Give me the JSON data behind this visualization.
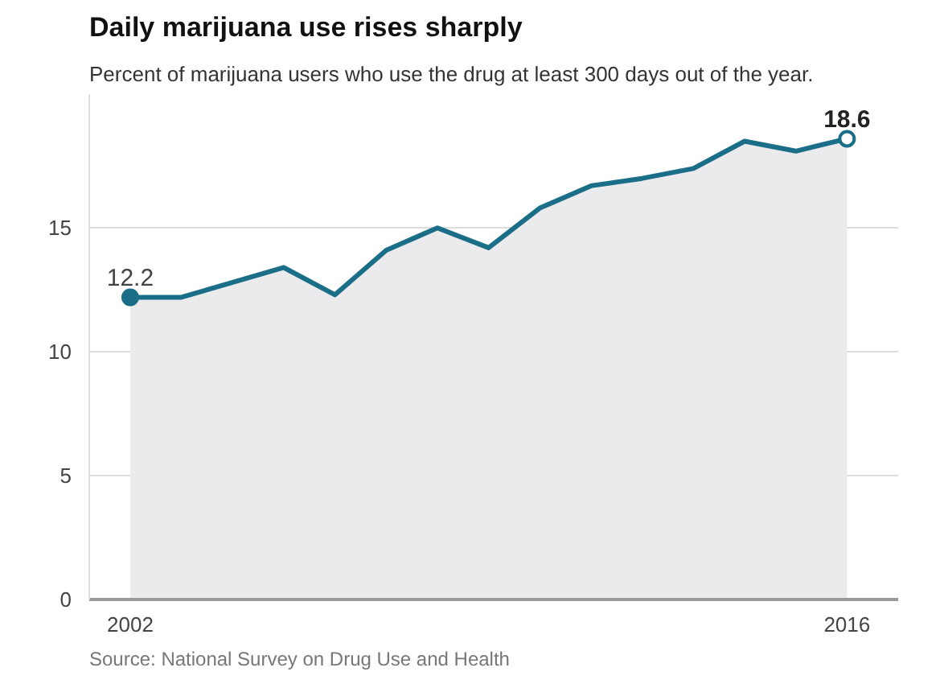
{
  "chart_data": {
    "type": "area",
    "title": "Daily marijuana use rises sharply",
    "subtitle": "Percent of marijuana users who use the drug at least 300 days out of the year.",
    "x": [
      2002,
      2003,
      2004,
      2005,
      2006,
      2007,
      2008,
      2009,
      2010,
      2011,
      2012,
      2013,
      2014,
      2015,
      2016
    ],
    "series": [
      {
        "color": "#1a6e87",
        "values": [
          12.2,
          12.2,
          12.8,
          13.4,
          12.3,
          14.1,
          15.0,
          14.2,
          15.8,
          16.7,
          17.0,
          17.4,
          18.5,
          18.1,
          18.6
        ]
      }
    ],
    "xlim": [
      2001.2,
      2017.0
    ],
    "xticks": [
      2002,
      2016
    ],
    "ylim": [
      0,
      20.4
    ],
    "yticks": [
      0,
      5,
      10,
      15
    ],
    "grid": "y",
    "marker": "none",
    "line_style": "solid",
    "annotations": [
      {
        "text": "12.2",
        "x": 2002,
        "y": 12.2
      },
      {
        "text": "18.6",
        "x": 2016,
        "y": 18.6
      },
      "Source: National Survey on Drug Use and Health"
    ]
  }
}
